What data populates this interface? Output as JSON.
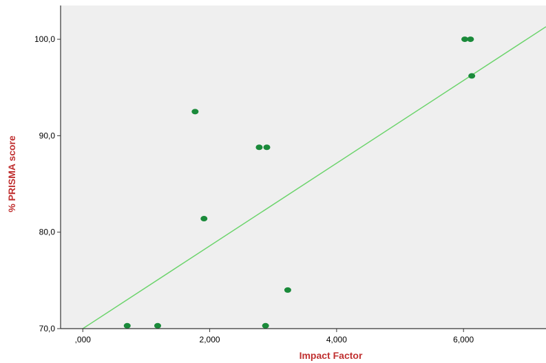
{
  "chart_data": {
    "type": "scatter",
    "xlabel": "Impact Factor",
    "ylabel": "% PRISMA score",
    "xlim": [
      -0.35,
      7.3
    ],
    "ylim": [
      70,
      103.5
    ],
    "x_ticks": [
      0,
      2,
      4,
      6
    ],
    "x_tick_labels": [
      ",000",
      "2,000",
      "4,000",
      "6,000"
    ],
    "y_ticks": [
      70,
      80,
      90,
      100
    ],
    "y_tick_labels": [
      "70,0",
      "80,0",
      "90,0",
      "100,0"
    ],
    "grid": false,
    "legend": "none",
    "points": [
      {
        "x": 0.7,
        "y": 70.3
      },
      {
        "x": 1.18,
        "y": 70.3
      },
      {
        "x": 1.77,
        "y": 92.5
      },
      {
        "x": 1.91,
        "y": 81.4
      },
      {
        "x": 2.78,
        "y": 88.8
      },
      {
        "x": 2.9,
        "y": 88.8
      },
      {
        "x": 2.88,
        "y": 70.3
      },
      {
        "x": 3.23,
        "y": 74.0
      },
      {
        "x": 6.02,
        "y": 100.0
      },
      {
        "x": 6.11,
        "y": 100.0
      },
      {
        "x": 6.13,
        "y": 96.2
      }
    ],
    "fit_line": {
      "x": [
        0.0,
        7.3
      ],
      "y": [
        70.0,
        101.3
      ]
    },
    "colors": {
      "plot_bg": "#efefef",
      "point": "#1a8a3a",
      "fit_line": "#6cd46c",
      "axis_title": "#c03030",
      "frame": "#333333"
    }
  }
}
